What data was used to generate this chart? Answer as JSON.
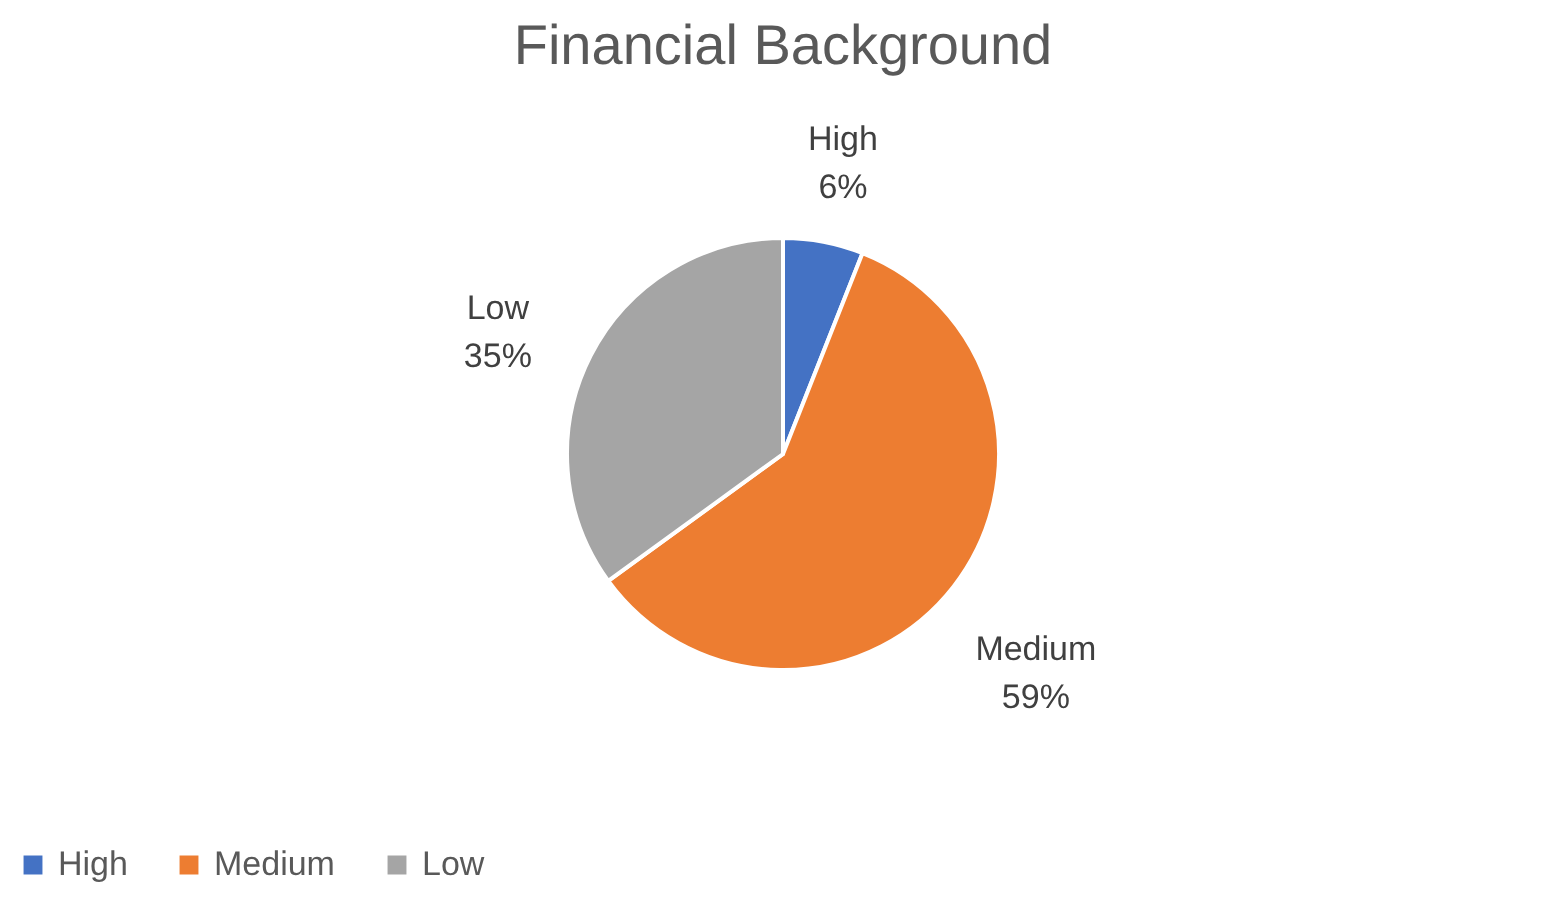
{
  "chart_data": {
    "type": "pie",
    "title": "Financial Background",
    "categories": [
      "High",
      "Medium",
      "Low"
    ],
    "values": [
      6,
      59,
      35
    ],
    "colors": [
      "#4472c4",
      "#ed7d31",
      "#a5a5a5"
    ],
    "value_labels": [
      "6%",
      "59%",
      "35%"
    ],
    "legend": "bottom"
  }
}
